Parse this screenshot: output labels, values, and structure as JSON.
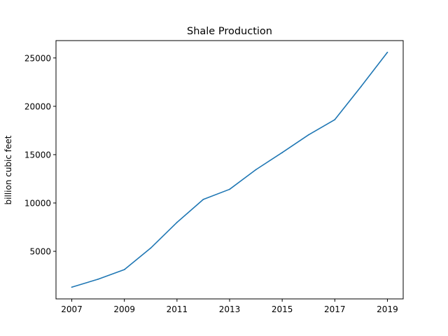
{
  "chart_data": {
    "type": "line",
    "title": "Shale Production",
    "xlabel": "",
    "ylabel": "billion cubic feet",
    "x": [
      2007,
      2008,
      2009,
      2010,
      2011,
      2012,
      2013,
      2014,
      2015,
      2016,
      2017,
      2018,
      2019
    ],
    "series": [
      {
        "values": [
          1293,
          2116,
          3110,
          5336,
          7994,
          10371,
          11415,
          13447,
          15213,
          17044,
          18621,
          22050,
          25580
        ]
      }
    ],
    "xticks": [
      "2007",
      "2009",
      "2011",
      "2013",
      "2015",
      "2017",
      "2019"
    ],
    "yticks": [
      "5000",
      "10000",
      "15000",
      "20000",
      "25000"
    ],
    "xlim": [
      2006.4,
      2019.6
    ],
    "ylim": [
      80,
      26795
    ],
    "grid": false,
    "line_color": "#1f77b4"
  }
}
